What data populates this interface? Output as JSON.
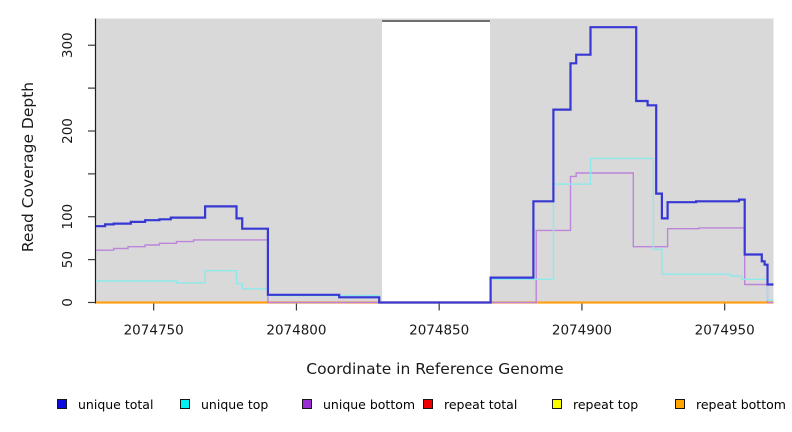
{
  "legend": {
    "items": [
      {
        "label": "unique total",
        "color": "#0b0bdf"
      },
      {
        "label": "unique top",
        "color": "#00f2f2"
      },
      {
        "label": "unique bottom",
        "color": "#9b2fd6"
      },
      {
        "label": "repeat total",
        "color": "#f00000"
      },
      {
        "label": "repeat top",
        "color": "#fcfc00"
      },
      {
        "label": "repeat bottom",
        "color": "#ffa400"
      }
    ]
  },
  "chart_data": {
    "type": "line",
    "subtype": "step-coverage",
    "title": "",
    "xlabel": "Coordinate in Reference Genome",
    "ylabel": "Read Coverage Depth",
    "panel_bg": "#d9d9d9",
    "axis_color": "#1a1a1a",
    "xlim": [
      2074729.8,
      2074967.1
    ],
    "ylim_draw": [
      -1.2,
      331.2
    ],
    "xticks": [
      2074750,
      2074800,
      2074850,
      2074900,
      2074950
    ],
    "xtick_labels": [
      "2074750",
      "2074800",
      "2074850",
      "2074900",
      "2074950"
    ],
    "yticks": [
      0,
      50,
      100,
      150,
      200,
      250,
      300
    ],
    "ytick_labels": [
      "0",
      "50",
      "100",
      "",
      "200",
      "",
      "300"
    ],
    "grid": "off",
    "legend_position": "bottom",
    "mask_region": {
      "x0": 2074830,
      "x1": 2074867.8,
      "fill": "#ffffff",
      "top_border_color": "#6f6f6f"
    },
    "series": [
      {
        "name": "repeat total",
        "color": "#cc0000",
        "width": 1,
        "points": [
          [
            2074729.8,
            0
          ]
        ]
      },
      {
        "name": "repeat top",
        "color": "#f0f000",
        "width": 1,
        "points": [
          [
            2074729.8,
            0
          ]
        ]
      },
      {
        "name": "repeat bottom",
        "color": "#ffa018",
        "width": 2.2,
        "points": [
          [
            2074729.8,
            0
          ]
        ]
      },
      {
        "name": "unique bottom",
        "color": "#bd84da",
        "width": 1.4,
        "points": [
          [
            2074729.8,
            61
          ],
          [
            2074736,
            63
          ],
          [
            2074741,
            65
          ],
          [
            2074747,
            67
          ],
          [
            2074752,
            69
          ],
          [
            2074758,
            71
          ],
          [
            2074764,
            73
          ],
          [
            2074790,
            0
          ],
          [
            2074884,
            84
          ],
          [
            2074896,
            147
          ],
          [
            2074898,
            151
          ],
          [
            2074918,
            65
          ],
          [
            2074930,
            86
          ],
          [
            2074941,
            87
          ],
          [
            2074957,
            21
          ],
          [
            2074965,
            0
          ]
        ]
      },
      {
        "name": "unique top",
        "color": "#8de9ea",
        "width": 1.4,
        "points": [
          [
            2074729.8,
            25
          ],
          [
            2074758,
            23
          ],
          [
            2074768,
            37
          ],
          [
            2074779,
            22
          ],
          [
            2074781,
            16
          ],
          [
            2074790,
            8
          ],
          [
            2074829,
            0
          ],
          [
            2074868,
            27
          ],
          [
            2074890,
            138
          ],
          [
            2074903,
            168
          ],
          [
            2074925,
            62
          ],
          [
            2074928,
            33
          ],
          [
            2074952,
            31
          ],
          [
            2074956,
            27
          ],
          [
            2074965,
            3
          ]
        ]
      },
      {
        "name": "unique total",
        "color": "#3737d3",
        "width": 2.2,
        "points": [
          [
            2074729.8,
            89
          ],
          [
            2074733,
            91
          ],
          [
            2074736,
            92
          ],
          [
            2074742,
            94
          ],
          [
            2074747,
            96
          ],
          [
            2074752,
            97
          ],
          [
            2074756,
            99
          ],
          [
            2074768,
            112
          ],
          [
            2074779,
            98
          ],
          [
            2074781,
            86
          ],
          [
            2074790,
            9
          ],
          [
            2074815,
            6
          ],
          [
            2074829,
            0
          ],
          [
            2074868,
            29
          ],
          [
            2074883,
            118
          ],
          [
            2074890,
            225
          ],
          [
            2074896,
            279
          ],
          [
            2074898,
            289
          ],
          [
            2074903,
            321
          ],
          [
            2074919,
            235
          ],
          [
            2074923,
            230
          ],
          [
            2074926,
            127
          ],
          [
            2074928,
            98
          ],
          [
            2074930,
            117
          ],
          [
            2074940,
            118
          ],
          [
            2074955,
            120
          ],
          [
            2074957,
            56
          ],
          [
            2074963,
            48
          ],
          [
            2074964,
            44
          ],
          [
            2074965,
            21
          ]
        ]
      }
    ]
  }
}
